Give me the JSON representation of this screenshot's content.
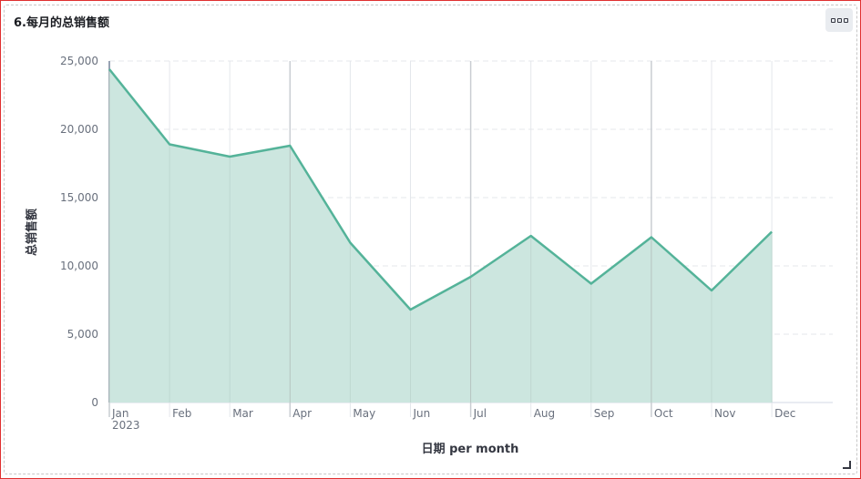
{
  "panel": {
    "title": "6.每月的总销售额",
    "options_icon": "more-horizontal-icon"
  },
  "colors": {
    "line": "#54b399",
    "area": "#cce6df",
    "grid": "#e4e7eb",
    "major_grid": "#c9cdd2",
    "frame": "#e03030"
  },
  "chart_data": {
    "type": "area",
    "xlabel": "日期 per month",
    "ylabel": "总销售额",
    "categories": [
      "Jan",
      "Feb",
      "Mar",
      "Apr",
      "May",
      "Jun",
      "Jul",
      "Aug",
      "Sep",
      "Oct",
      "Nov",
      "Dec"
    ],
    "year_label": "2023",
    "y_ticks": [
      "0",
      "5,000",
      "10,000",
      "15,000",
      "20,000",
      "25,000"
    ],
    "ylim": [
      0,
      25000
    ],
    "grid": true,
    "series": [
      {
        "values": [
          24400,
          18900,
          18000,
          18800,
          11700,
          6800,
          9200,
          12200,
          8700,
          12100,
          8200,
          12500
        ]
      }
    ]
  }
}
